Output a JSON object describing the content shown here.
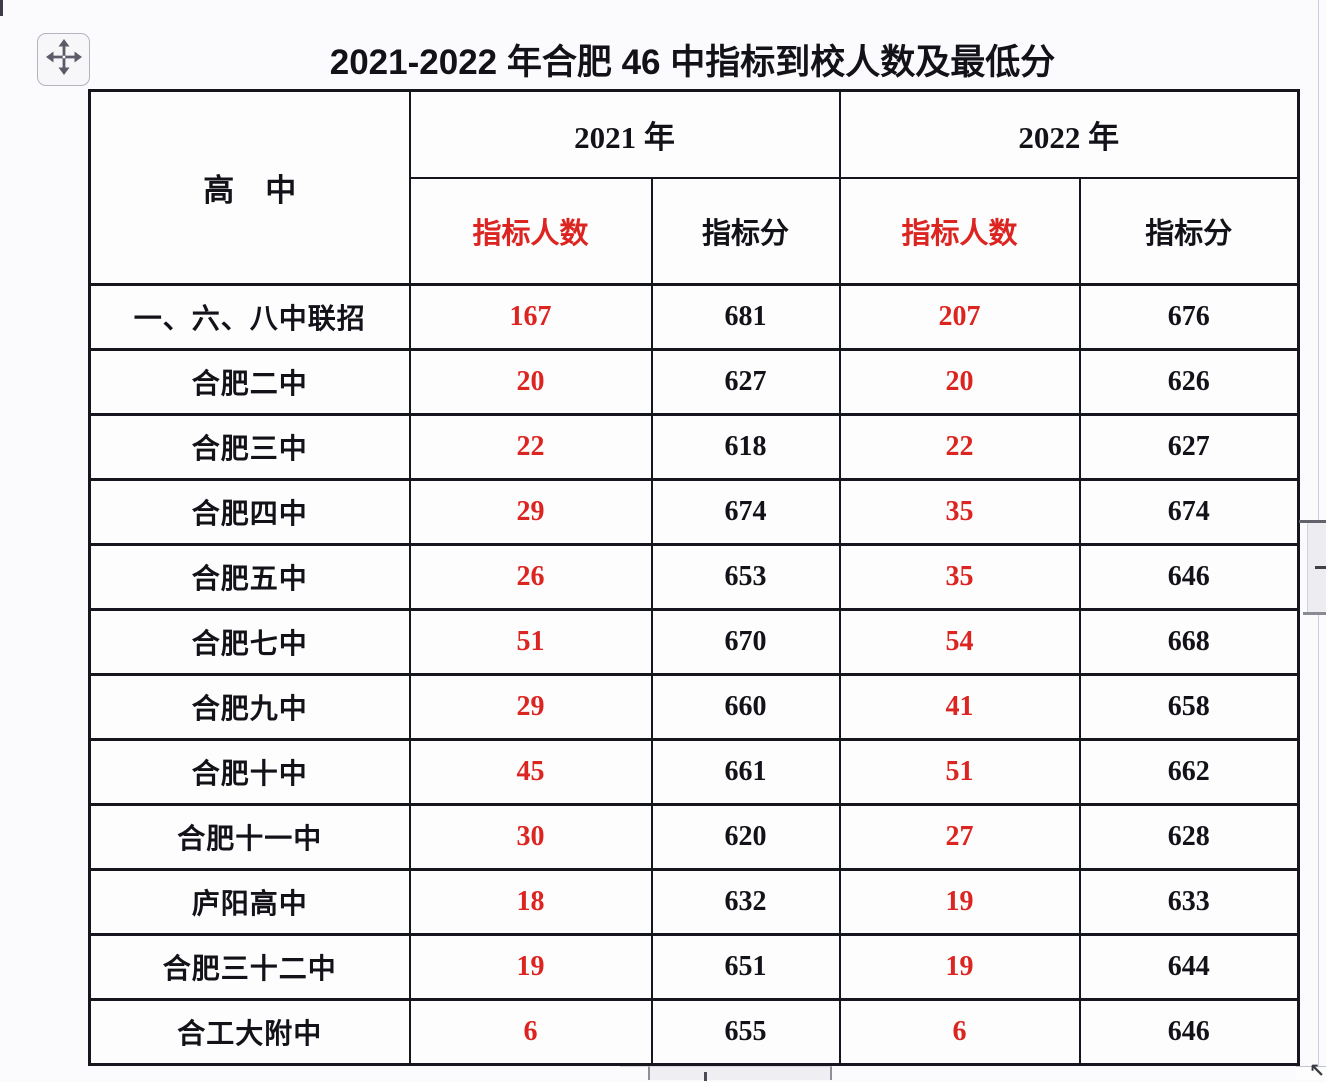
{
  "title": "2021-2022 年合肥 46 中指标到校人数及最低分",
  "colors": {
    "red": "#dc2420",
    "text": "#121218",
    "border": "#16161f",
    "background": "#fbfbfd"
  },
  "icons": {
    "move_handle": "four-way-move-arrow",
    "resize_arrow": "↖"
  },
  "table": {
    "corner_header": "高　中",
    "year_groups": [
      "2021 年",
      "2022 年"
    ],
    "sub_headers": [
      "指标人数",
      "指标分",
      "指标人数",
      "指标分"
    ],
    "rows": [
      {
        "school": "一、六、八中联招",
        "values": [
          "167",
          "681",
          "207",
          "676"
        ]
      },
      {
        "school": "合肥二中",
        "values": [
          "20",
          "627",
          "20",
          "626"
        ]
      },
      {
        "school": "合肥三中",
        "values": [
          "22",
          "618",
          "22",
          "627"
        ]
      },
      {
        "school": "合肥四中",
        "values": [
          "29",
          "674",
          "35",
          "674"
        ]
      },
      {
        "school": "合肥五中",
        "values": [
          "26",
          "653",
          "35",
          "646"
        ]
      },
      {
        "school": "合肥七中",
        "values": [
          "51",
          "670",
          "54",
          "668"
        ]
      },
      {
        "school": "合肥九中",
        "values": [
          "29",
          "660",
          "41",
          "658"
        ]
      },
      {
        "school": "合肥十中",
        "values": [
          "45",
          "661",
          "51",
          "662"
        ]
      },
      {
        "school": "合肥十一中",
        "values": [
          "30",
          "620",
          "27",
          "628"
        ]
      },
      {
        "school": "庐阳高中",
        "values": [
          "18",
          "632",
          "19",
          "633"
        ]
      },
      {
        "school": "合肥三十二中",
        "values": [
          "19",
          "651",
          "19",
          "644"
        ]
      },
      {
        "school": "合工大附中",
        "values": [
          "6",
          "655",
          "6",
          "646"
        ]
      }
    ]
  }
}
